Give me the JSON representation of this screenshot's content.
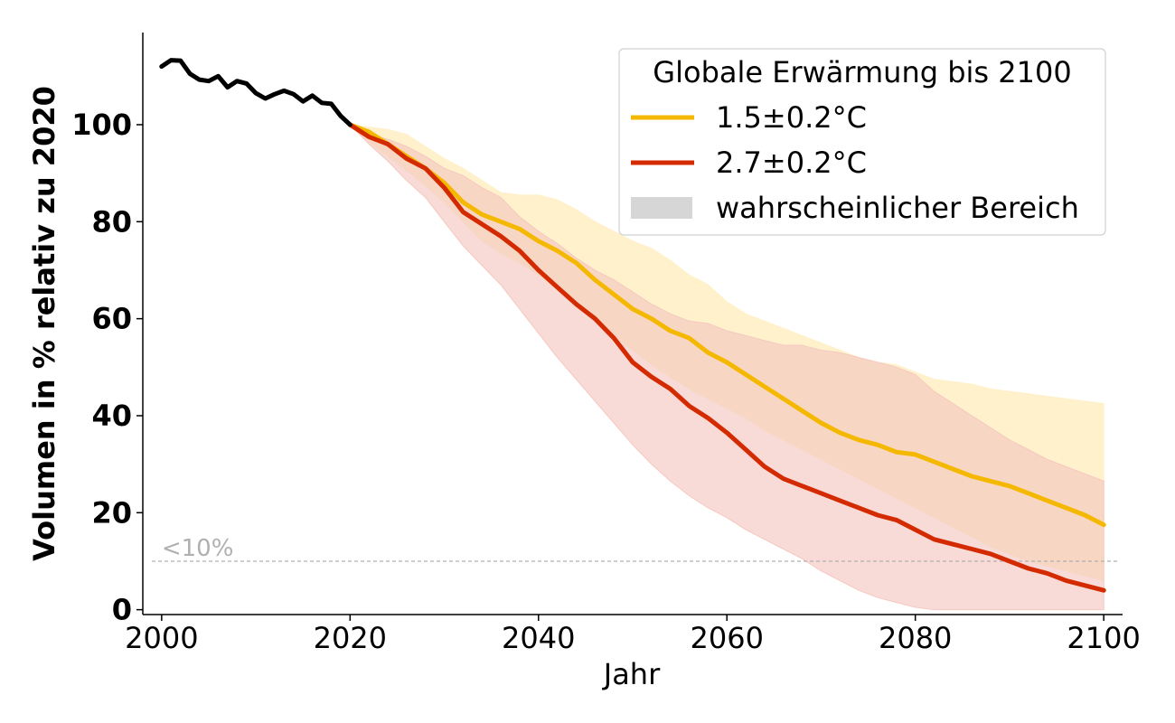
{
  "chart_data": {
    "type": "line",
    "title": "",
    "xlabel": "Jahr",
    "ylabel": "Volumen in % relativ zu 2020",
    "xlim": [
      1998,
      2102
    ],
    "ylim": [
      -1,
      119
    ],
    "xticks": [
      2000,
      2020,
      2040,
      2060,
      2080,
      2100
    ],
    "yticks": [
      0,
      20,
      40,
      60,
      80,
      100
    ],
    "legend": {
      "title": "Globale Erwärmung bis 2100",
      "position": "top-right",
      "entries": [
        {
          "label": "1.5±0.2°C",
          "color": "#f5b800",
          "kind": "line"
        },
        {
          "label": "2.7±0.2°C",
          "color": "#d42a00",
          "kind": "line"
        },
        {
          "label": "wahrscheinlicher Bereich",
          "color": "#d6d6d6",
          "kind": "area"
        }
      ]
    },
    "reference_line": {
      "y": 10,
      "label": "<10%",
      "color": "#b0b0b0"
    },
    "observed": {
      "color": "#000000",
      "x": [
        2000,
        2001,
        2002,
        2003,
        2004,
        2005,
        2006,
        2007,
        2008,
        2009,
        2010,
        2011,
        2012,
        2013,
        2014,
        2015,
        2016,
        2017,
        2018,
        2019,
        2020
      ],
      "y": [
        112,
        113.3,
        113.2,
        110.5,
        109.3,
        109,
        110,
        107.7,
        109,
        108.5,
        106.5,
        105.4,
        106.3,
        107,
        106.3,
        104.8,
        106,
        104.5,
        104.3,
        101.8,
        100
      ]
    },
    "series": [
      {
        "name": "1.5±0.2°C",
        "color": "#f5b800",
        "band_color": "#fff0c8",
        "x": [
          2020,
          2022,
          2024,
          2026,
          2028,
          2030,
          2032,
          2034,
          2036,
          2038,
          2040,
          2042,
          2044,
          2046,
          2048,
          2050,
          2052,
          2054,
          2056,
          2058,
          2060,
          2062,
          2064,
          2066,
          2068,
          2070,
          2072,
          2074,
          2076,
          2078,
          2080,
          2082,
          2084,
          2086,
          2088,
          2090,
          2092,
          2094,
          2096,
          2098,
          2100
        ],
        "y": [
          100,
          98.5,
          96,
          93.5,
          91,
          88,
          84,
          81.5,
          80,
          78.5,
          76,
          74,
          71.5,
          68,
          65,
          62,
          60,
          57.5,
          56,
          53,
          51,
          48.5,
          46,
          43.5,
          41,
          38.5,
          36.5,
          35,
          34,
          32.5,
          32,
          30.5,
          29,
          27.5,
          26.5,
          25.5,
          24,
          22.5,
          21,
          19.5,
          17.5
        ],
        "upper": [
          100,
          99.5,
          99,
          98,
          95.5,
          93,
          91,
          88.5,
          86,
          85.5,
          85.5,
          84.5,
          82.5,
          80,
          78,
          76,
          74.5,
          72,
          69,
          67,
          63.5,
          61,
          59.5,
          58,
          56.5,
          55,
          53.5,
          52,
          51,
          50.5,
          49,
          47.5,
          47,
          46.5,
          45.5,
          45,
          44.5,
          44,
          43.5,
          43,
          42.5
        ],
        "lower": [
          100,
          96.5,
          93.5,
          90.5,
          87.5,
          84,
          80,
          76,
          73.5,
          71.5,
          69,
          66,
          63,
          60,
          56.5,
          53.5,
          50.5,
          48,
          45.5,
          43.5,
          41.5,
          39.5,
          37,
          35,
          33,
          31,
          29,
          27,
          25,
          23,
          21,
          19,
          17,
          15,
          13,
          11.5,
          10,
          9,
          8,
          7,
          6
        ]
      },
      {
        "name": "2.7±0.2°C",
        "color": "#d42a00",
        "band_color": "#f5c8c0",
        "x": [
          2020,
          2022,
          2024,
          2026,
          2028,
          2030,
          2032,
          2034,
          2036,
          2038,
          2040,
          2042,
          2044,
          2046,
          2048,
          2050,
          2052,
          2054,
          2056,
          2058,
          2060,
          2062,
          2064,
          2066,
          2068,
          2070,
          2072,
          2074,
          2076,
          2078,
          2080,
          2082,
          2084,
          2086,
          2088,
          2090,
          2092,
          2094,
          2096,
          2098,
          2100
        ],
        "y": [
          100,
          97.5,
          96,
          93,
          91,
          87,
          82,
          79.5,
          77,
          74,
          70,
          66.5,
          63,
          60,
          56,
          51,
          48,
          45.5,
          42,
          39.5,
          36.5,
          33,
          29.5,
          27,
          25.5,
          24,
          22.5,
          21,
          19.5,
          18.5,
          16.5,
          14.5,
          13.5,
          12.5,
          11.5,
          10,
          8.5,
          7.5,
          6,
          5,
          4
        ],
        "upper": [
          100,
          98,
          97,
          95.5,
          93.5,
          91,
          89.5,
          87,
          85,
          81,
          78,
          75.5,
          72.5,
          70,
          68,
          65.5,
          63,
          61,
          59.5,
          59,
          57.5,
          56.5,
          55.5,
          54.5,
          54.5,
          53.5,
          53,
          52,
          51,
          50,
          48.5,
          45,
          42.5,
          40,
          37.5,
          35,
          33,
          31,
          29.5,
          28,
          26.5
        ],
        "lower": [
          100,
          96,
          92.5,
          88.5,
          85,
          80,
          75,
          71,
          67,
          62,
          57,
          52,
          47.5,
          43,
          38.5,
          34,
          30,
          26.5,
          23.5,
          21,
          19,
          16.5,
          14.5,
          12.5,
          10.5,
          8,
          6,
          4,
          2.5,
          1.5,
          0.5,
          0,
          0,
          0,
          0,
          0,
          0,
          0,
          0,
          0,
          0
        ]
      }
    ]
  }
}
